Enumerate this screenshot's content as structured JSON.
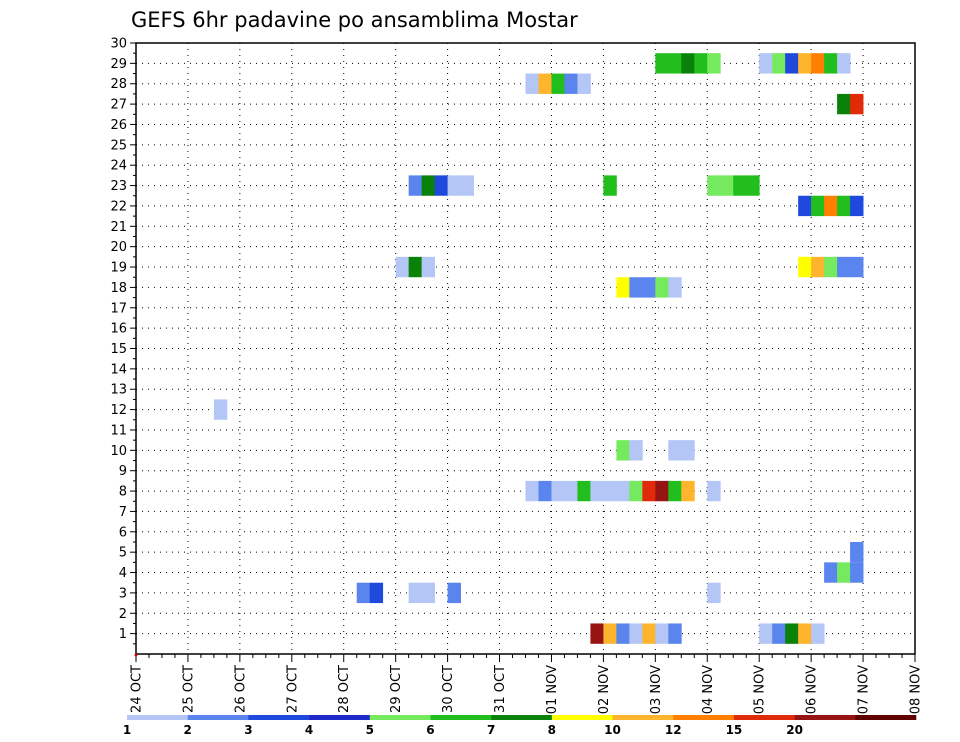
{
  "chart_data": {
    "type": "heatmap",
    "title": "GEFS 6hr padavine po ansamblima Mostar",
    "y_ticks": [
      "1",
      "2",
      "3",
      "4",
      "5",
      "6",
      "7",
      "8",
      "9",
      "10",
      "11",
      "12",
      "13",
      "14",
      "15",
      "16",
      "17",
      "18",
      "19",
      "20",
      "21",
      "22",
      "23",
      "24",
      "25",
      "26",
      "27",
      "28",
      "29",
      "30"
    ],
    "ylim": [
      0,
      30
    ],
    "x_ticks": [
      "24 OCT",
      "25 OCT",
      "26 OCT",
      "27 OCT",
      "28 OCT",
      "29 OCT",
      "30 OCT",
      "31 OCT",
      "01 NOV",
      "02 NOV",
      "03 NOV",
      "04 NOV",
      "05 NOV",
      "06 NOV",
      "07 NOV",
      "08 NOV"
    ],
    "time_step_hours": 6,
    "grid": true,
    "legend": {
      "placement": "bottom",
      "labels": [
        "1",
        "2",
        "3",
        "4",
        "5",
        "6",
        "7",
        "8",
        "10",
        "12",
        "15",
        "20"
      ],
      "colors": [
        "#b3c6f5",
        "#5a85ee",
        "#1f48dc",
        "#1f28c8",
        "#76ea5e",
        "#22be1e",
        "#0a820a",
        "#ffff00",
        "#ffb42e",
        "#ff8000",
        "#e02a0a",
        "#961414",
        "#600000"
      ]
    },
    "cells": [
      {
        "member": 29,
        "day": 10.0,
        "level": 6
      },
      {
        "member": 29,
        "day": 10.25,
        "level": 6
      },
      {
        "member": 29,
        "day": 10.5,
        "level": 7
      },
      {
        "member": 29,
        "day": 10.75,
        "level": 6
      },
      {
        "member": 29,
        "day": 11.0,
        "level": 5
      },
      {
        "member": 29,
        "day": 12.0,
        "level": 1
      },
      {
        "member": 29,
        "day": 12.25,
        "level": 5
      },
      {
        "member": 29,
        "day": 12.5,
        "level": 3
      },
      {
        "member": 29,
        "day": 12.75,
        "level": 9
      },
      {
        "member": 29,
        "day": 13.0,
        "level": 10
      },
      {
        "member": 29,
        "day": 13.25,
        "level": 6
      },
      {
        "member": 29,
        "day": 13.5,
        "level": 1
      },
      {
        "member": 28,
        "day": 7.5,
        "level": 1
      },
      {
        "member": 28,
        "day": 7.75,
        "level": 9
      },
      {
        "member": 28,
        "day": 8.0,
        "level": 6
      },
      {
        "member": 28,
        "day": 8.25,
        "level": 2
      },
      {
        "member": 28,
        "day": 8.5,
        "level": 1
      },
      {
        "member": 27,
        "day": 13.5,
        "level": 7
      },
      {
        "member": 27,
        "day": 13.75,
        "level": 11
      },
      {
        "member": 23,
        "day": 5.25,
        "level": 2
      },
      {
        "member": 23,
        "day": 5.5,
        "level": 7
      },
      {
        "member": 23,
        "day": 5.75,
        "level": 3
      },
      {
        "member": 23,
        "day": 6.0,
        "level": 1
      },
      {
        "member": 23,
        "day": 6.25,
        "level": 1
      },
      {
        "member": 23,
        "day": 9.0,
        "level": 6
      },
      {
        "member": 23,
        "day": 11.0,
        "level": 5
      },
      {
        "member": 23,
        "day": 11.25,
        "level": 5
      },
      {
        "member": 23,
        "day": 11.5,
        "level": 6
      },
      {
        "member": 23,
        "day": 11.75,
        "level": 6
      },
      {
        "member": 22,
        "day": 12.75,
        "level": 3
      },
      {
        "member": 22,
        "day": 13.0,
        "level": 6
      },
      {
        "member": 22,
        "day": 13.25,
        "level": 10
      },
      {
        "member": 22,
        "day": 13.5,
        "level": 6
      },
      {
        "member": 22,
        "day": 13.75,
        "level": 3
      },
      {
        "member": 19,
        "day": 5.0,
        "level": 1
      },
      {
        "member": 19,
        "day": 5.25,
        "level": 7
      },
      {
        "member": 19,
        "day": 5.5,
        "level": 1
      },
      {
        "member": 19,
        "day": 12.75,
        "level": 8
      },
      {
        "member": 19,
        "day": 13.0,
        "level": 9
      },
      {
        "member": 19,
        "day": 13.25,
        "level": 5
      },
      {
        "member": 19,
        "day": 13.5,
        "level": 2
      },
      {
        "member": 19,
        "day": 13.75,
        "level": 2
      },
      {
        "member": 18,
        "day": 9.25,
        "level": 8
      },
      {
        "member": 18,
        "day": 9.5,
        "level": 2
      },
      {
        "member": 18,
        "day": 9.75,
        "level": 2
      },
      {
        "member": 18,
        "day": 10.0,
        "level": 5
      },
      {
        "member": 18,
        "day": 10.25,
        "level": 1
      },
      {
        "member": 12,
        "day": 1.5,
        "level": 1
      },
      {
        "member": 10,
        "day": 9.25,
        "level": 5
      },
      {
        "member": 10,
        "day": 9.5,
        "level": 1
      },
      {
        "member": 10,
        "day": 10.25,
        "level": 1
      },
      {
        "member": 10,
        "day": 10.5,
        "level": 1
      },
      {
        "member": 8,
        "day": 7.5,
        "level": 1
      },
      {
        "member": 8,
        "day": 7.75,
        "level": 2
      },
      {
        "member": 8,
        "day": 8.0,
        "level": 1
      },
      {
        "member": 8,
        "day": 8.25,
        "level": 1
      },
      {
        "member": 8,
        "day": 8.5,
        "level": 6
      },
      {
        "member": 8,
        "day": 8.75,
        "level": 1
      },
      {
        "member": 8,
        "day": 9.0,
        "level": 1
      },
      {
        "member": 8,
        "day": 9.25,
        "level": 1
      },
      {
        "member": 8,
        "day": 9.5,
        "level": 5
      },
      {
        "member": 8,
        "day": 9.75,
        "level": 11
      },
      {
        "member": 8,
        "day": 10.0,
        "level": 12
      },
      {
        "member": 8,
        "day": 10.25,
        "level": 6
      },
      {
        "member": 8,
        "day": 10.5,
        "level": 9
      },
      {
        "member": 8,
        "day": 11.0,
        "level": 1
      },
      {
        "member": 4,
        "day": 13.25,
        "level": 2
      },
      {
        "member": 4,
        "day": 13.5,
        "level": 5
      },
      {
        "member": 4,
        "day": 13.75,
        "level": 2
      },
      {
        "member": 5,
        "day": 13.75,
        "level": 2
      },
      {
        "member": 3,
        "day": 4.25,
        "level": 2
      },
      {
        "member": 3,
        "day": 4.5,
        "level": 3
      },
      {
        "member": 3,
        "day": 5.25,
        "level": 1
      },
      {
        "member": 3,
        "day": 5.5,
        "level": 1
      },
      {
        "member": 3,
        "day": 6.0,
        "level": 2
      },
      {
        "member": 3,
        "day": 11.0,
        "level": 1
      },
      {
        "member": 1,
        "day": 8.75,
        "level": 12
      },
      {
        "member": 1,
        "day": 9.0,
        "level": 9
      },
      {
        "member": 1,
        "day": 9.25,
        "level": 2
      },
      {
        "member": 1,
        "day": 9.5,
        "level": 1
      },
      {
        "member": 1,
        "day": 9.75,
        "level": 9
      },
      {
        "member": 1,
        "day": 10.0,
        "level": 1
      },
      {
        "member": 1,
        "day": 10.25,
        "level": 2
      },
      {
        "member": 1,
        "day": 12.0,
        "level": 1
      },
      {
        "member": 1,
        "day": 12.25,
        "level": 2
      },
      {
        "member": 1,
        "day": 12.5,
        "level": 7
      },
      {
        "member": 1,
        "day": 12.75,
        "level": 9
      },
      {
        "member": 1,
        "day": 13.0,
        "level": 1
      }
    ]
  }
}
